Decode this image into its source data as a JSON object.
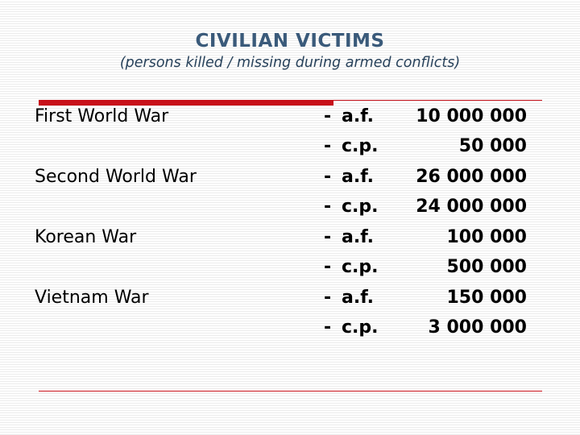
{
  "title": "CIVILIAN VICTIMS",
  "subtitle": "(persons killed / missing during armed conflicts)",
  "wars": [
    {
      "name": "First World War",
      "entries": [
        {
          "dash": "-",
          "code": "a.f.",
          "value": "10 000 000"
        },
        {
          "dash": "-",
          "code": "c.p.",
          "value": "50 000"
        }
      ]
    },
    {
      "name": "Second World War",
      "entries": [
        {
          "dash": "-",
          "code": "a.f.",
          "value": "26 000 000"
        },
        {
          "dash": "-",
          "code": "c.p.",
          "value": "24 000 000"
        }
      ]
    },
    {
      "name": "Korean War",
      "entries": [
        {
          "dash": "-",
          "code": "a.f.",
          "value": "100 000"
        },
        {
          "dash": "-",
          "code": "c.p.",
          "value": "500 000"
        }
      ]
    },
    {
      "name": "Vietnam War",
      "entries": [
        {
          "dash": "-",
          "code": "a.f.",
          "value": "150 000"
        },
        {
          "dash": "-",
          "code": "c.p.",
          "value": "3 000 000"
        }
      ]
    }
  ]
}
